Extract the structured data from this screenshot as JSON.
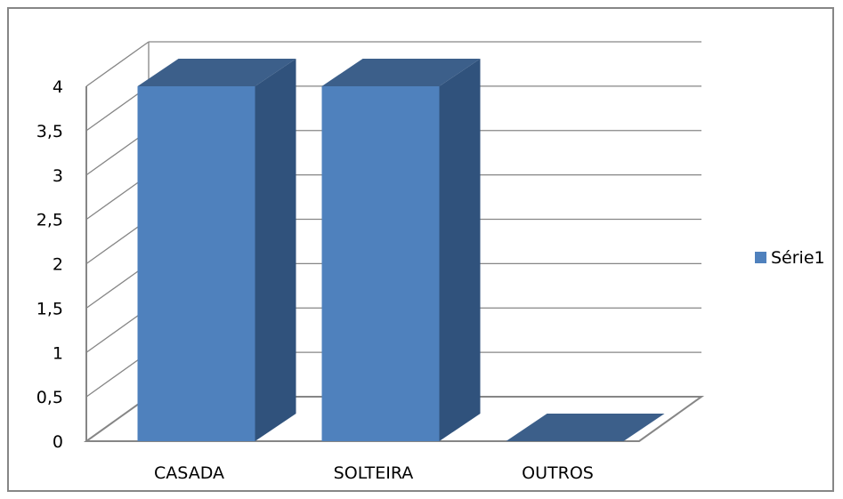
{
  "chart_data": {
    "type": "bar",
    "categories": [
      "CASADA",
      "SOLTEIRA",
      "OUTROS"
    ],
    "series": [
      {
        "name": "Série1",
        "values": [
          4,
          4,
          0
        ]
      }
    ],
    "yticks": [
      "0",
      "0,5",
      "1",
      "1,5",
      "2",
      "2,5",
      "3",
      "3,5",
      "4"
    ],
    "ylim": [
      0,
      4
    ],
    "grid": true,
    "legend": "right",
    "colors": {
      "front": "#4f81bd",
      "top": "#3c5f8a",
      "side": "#30527c",
      "grid": "#868686"
    }
  }
}
